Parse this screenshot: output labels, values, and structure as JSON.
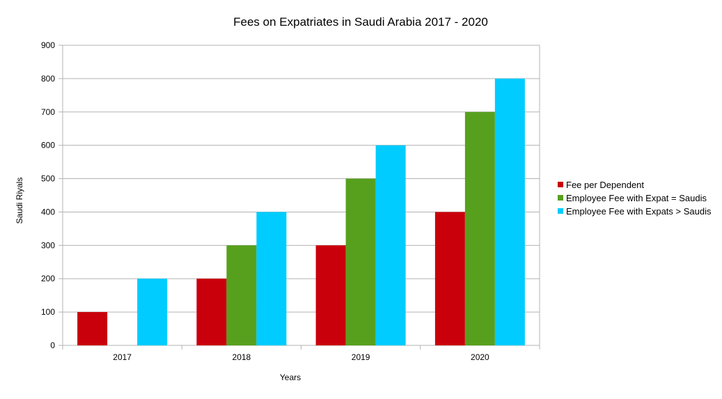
{
  "chart_data": {
    "type": "bar",
    "title": "Fees on Expatriates in Saudi Arabia 2017 - 2020",
    "xlabel": "Years",
    "ylabel": "Saudi Riyals",
    "categories": [
      "2017",
      "2018",
      "2019",
      "2020"
    ],
    "series": [
      {
        "name": "Fee per Dependent",
        "values": [
          100,
          200,
          300,
          400
        ],
        "color": "#c9000b"
      },
      {
        "name": "Employee Fee with Expat = Saudis",
        "values": [
          0,
          300,
          500,
          700
        ],
        "color": "#57a01e"
      },
      {
        "name": "Employee Fee with Expats > Saudis",
        "values": [
          200,
          400,
          600,
          800
        ],
        "color": "#00ccff"
      }
    ],
    "ylim": [
      0,
      900
    ],
    "yticks": [
      "0",
      "100",
      "200",
      "300",
      "400",
      "500",
      "600",
      "700",
      "800",
      "900"
    ],
    "grid": true,
    "legend_position": "right"
  }
}
